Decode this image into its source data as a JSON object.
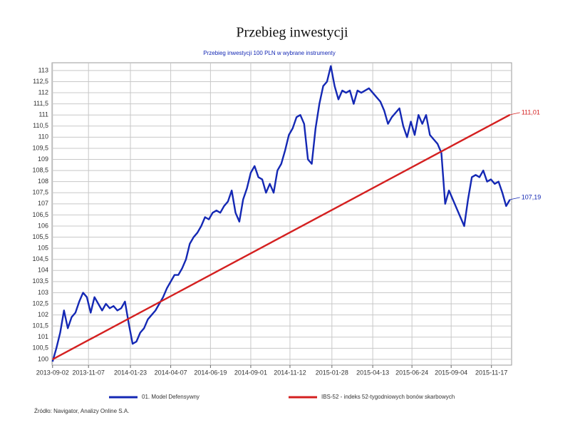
{
  "chart_data": {
    "type": "line",
    "title": "Przebieg inwestycji",
    "subtitle": "Przebieg inwestycji 100 PLN w wybrane instrumenty",
    "source": "Źródło: Navigator, Analizy Online S.A.",
    "grid": true,
    "legend": "bottom",
    "xlim": [
      "2013-09-01",
      "2015-12-24"
    ],
    "xticks": [
      "2013-09-02",
      "2013-11-07",
      "2014-01-23",
      "2014-04-07",
      "2014-06-19",
      "2014-09-01",
      "2014-11-12",
      "2015-01-28",
      "2015-04-13",
      "2015-06-24",
      "2015-09-04",
      "2015-11-17"
    ],
    "ylim": [
      99.74,
      113.35
    ],
    "yticks": [
      100,
      {
        "value": 100.5,
        "label": "100,5"
      },
      101,
      {
        "value": 101.5,
        "label": "101,5"
      },
      102,
      {
        "value": 102.5,
        "label": "102,5"
      },
      103,
      {
        "value": 103.5,
        "label": "103,5"
      },
      104,
      {
        "value": 104.5,
        "label": "104,5"
      },
      105,
      {
        "value": 105.5,
        "label": "105,5"
      },
      106,
      {
        "value": 106.5,
        "label": "106,5"
      },
      107,
      {
        "value": 107.5,
        "label": "107,5"
      },
      108,
      {
        "value": 108.5,
        "label": "108,5"
      },
      109,
      {
        "value": 109.5,
        "label": "109,5"
      },
      110,
      {
        "value": 110.5,
        "label": "110,5"
      },
      111,
      {
        "value": 111.5,
        "label": "111,5"
      },
      112,
      {
        "value": 112.5,
        "label": "112,5"
      },
      113
    ],
    "series": [
      {
        "name": "01. Model Defensywny",
        "color": "#1428b4",
        "end_label": "107,19",
        "x": [
          "2013-09-02",
          "2013-09-09",
          "2013-09-16",
          "2013-09-23",
          "2013-09-30",
          "2013-10-07",
          "2013-10-14",
          "2013-10-21",
          "2013-10-28",
          "2013-11-04",
          "2013-11-11",
          "2013-11-18",
          "2013-11-25",
          "2013-12-02",
          "2013-12-09",
          "2013-12-16",
          "2013-12-23",
          "2013-12-30",
          "2014-01-06",
          "2014-01-13",
          "2014-01-20",
          "2014-01-27",
          "2014-02-03",
          "2014-02-10",
          "2014-02-17",
          "2014-02-24",
          "2014-03-03",
          "2014-03-10",
          "2014-03-17",
          "2014-03-24",
          "2014-03-31",
          "2014-04-07",
          "2014-04-14",
          "2014-04-21",
          "2014-04-28",
          "2014-05-05",
          "2014-05-12",
          "2014-05-19",
          "2014-05-26",
          "2014-06-02",
          "2014-06-09",
          "2014-06-16",
          "2014-06-23",
          "2014-06-30",
          "2014-07-07",
          "2014-07-14",
          "2014-07-21",
          "2014-07-28",
          "2014-08-04",
          "2014-08-11",
          "2014-08-18",
          "2014-08-25",
          "2014-09-01",
          "2014-09-08",
          "2014-09-15",
          "2014-09-22",
          "2014-09-29",
          "2014-10-06",
          "2014-10-13",
          "2014-10-20",
          "2014-10-27",
          "2014-11-03",
          "2014-11-10",
          "2014-11-17",
          "2014-11-24",
          "2014-12-01",
          "2014-12-08",
          "2014-12-15",
          "2014-12-22",
          "2014-12-29",
          "2015-01-05",
          "2015-01-12",
          "2015-01-19",
          "2015-01-26",
          "2015-02-02",
          "2015-02-09",
          "2015-02-16",
          "2015-02-23",
          "2015-03-02",
          "2015-03-09",
          "2015-03-16",
          "2015-03-23",
          "2015-03-30",
          "2015-04-06",
          "2015-04-13",
          "2015-04-20",
          "2015-04-27",
          "2015-05-04",
          "2015-05-11",
          "2015-05-18",
          "2015-05-25",
          "2015-06-01",
          "2015-06-08",
          "2015-06-15",
          "2015-06-22",
          "2015-06-29",
          "2015-07-06",
          "2015-07-13",
          "2015-07-20",
          "2015-07-27",
          "2015-08-03",
          "2015-08-10",
          "2015-08-17",
          "2015-08-24",
          "2015-08-31",
          "2015-09-07",
          "2015-09-14",
          "2015-09-21",
          "2015-09-28",
          "2015-10-05",
          "2015-10-12",
          "2015-10-19",
          "2015-10-26",
          "2015-11-02",
          "2015-11-09",
          "2015-11-16",
          "2015-11-23",
          "2015-11-30",
          "2015-12-07",
          "2015-12-14",
          "2015-12-21"
        ],
        "values": [
          99.9,
          100.5,
          101.2,
          102.2,
          101.4,
          101.9,
          102.1,
          102.6,
          103.0,
          102.8,
          102.1,
          102.8,
          102.5,
          102.2,
          102.5,
          102.3,
          102.4,
          102.2,
          102.3,
          102.6,
          101.6,
          100.7,
          100.8,
          101.2,
          101.4,
          101.8,
          102.0,
          102.2,
          102.5,
          102.8,
          103.2,
          103.5,
          103.8,
          103.8,
          104.1,
          104.5,
          105.2,
          105.5,
          105.7,
          106.0,
          106.4,
          106.3,
          106.6,
          106.7,
          106.6,
          106.9,
          107.1,
          107.6,
          106.6,
          106.2,
          107.2,
          107.7,
          108.4,
          108.7,
          108.2,
          108.1,
          107.5,
          107.9,
          107.5,
          108.5,
          108.8,
          109.4,
          110.1,
          110.4,
          110.9,
          111.0,
          110.6,
          109.0,
          108.8,
          110.4,
          111.5,
          112.3,
          112.5,
          113.2,
          112.3,
          111.7,
          112.1,
          112.0,
          112.1,
          111.5,
          112.1,
          112.0,
          112.1,
          112.2,
          112.0,
          111.8,
          111.6,
          111.2,
          110.6,
          110.9,
          111.1,
          111.3,
          110.5,
          110.0,
          110.7,
          110.1,
          111.0,
          110.6,
          111.0,
          110.1,
          109.9,
          109.7,
          109.3,
          107.0,
          107.6,
          107.2,
          106.8,
          106.4,
          106.0,
          107.2,
          108.2,
          108.3,
          108.2,
          108.5,
          108.0,
          108.1,
          107.9,
          108.0,
          107.5,
          106.9,
          107.19
        ]
      },
      {
        "name": "IBS-52 - indeks 52-tygodniowych bonów skarbowych",
        "color": "#d42020",
        "end_label": "111,01",
        "x": [
          "2013-09-02",
          "2015-12-21"
        ],
        "values": [
          100,
          111.01
        ]
      }
    ]
  }
}
